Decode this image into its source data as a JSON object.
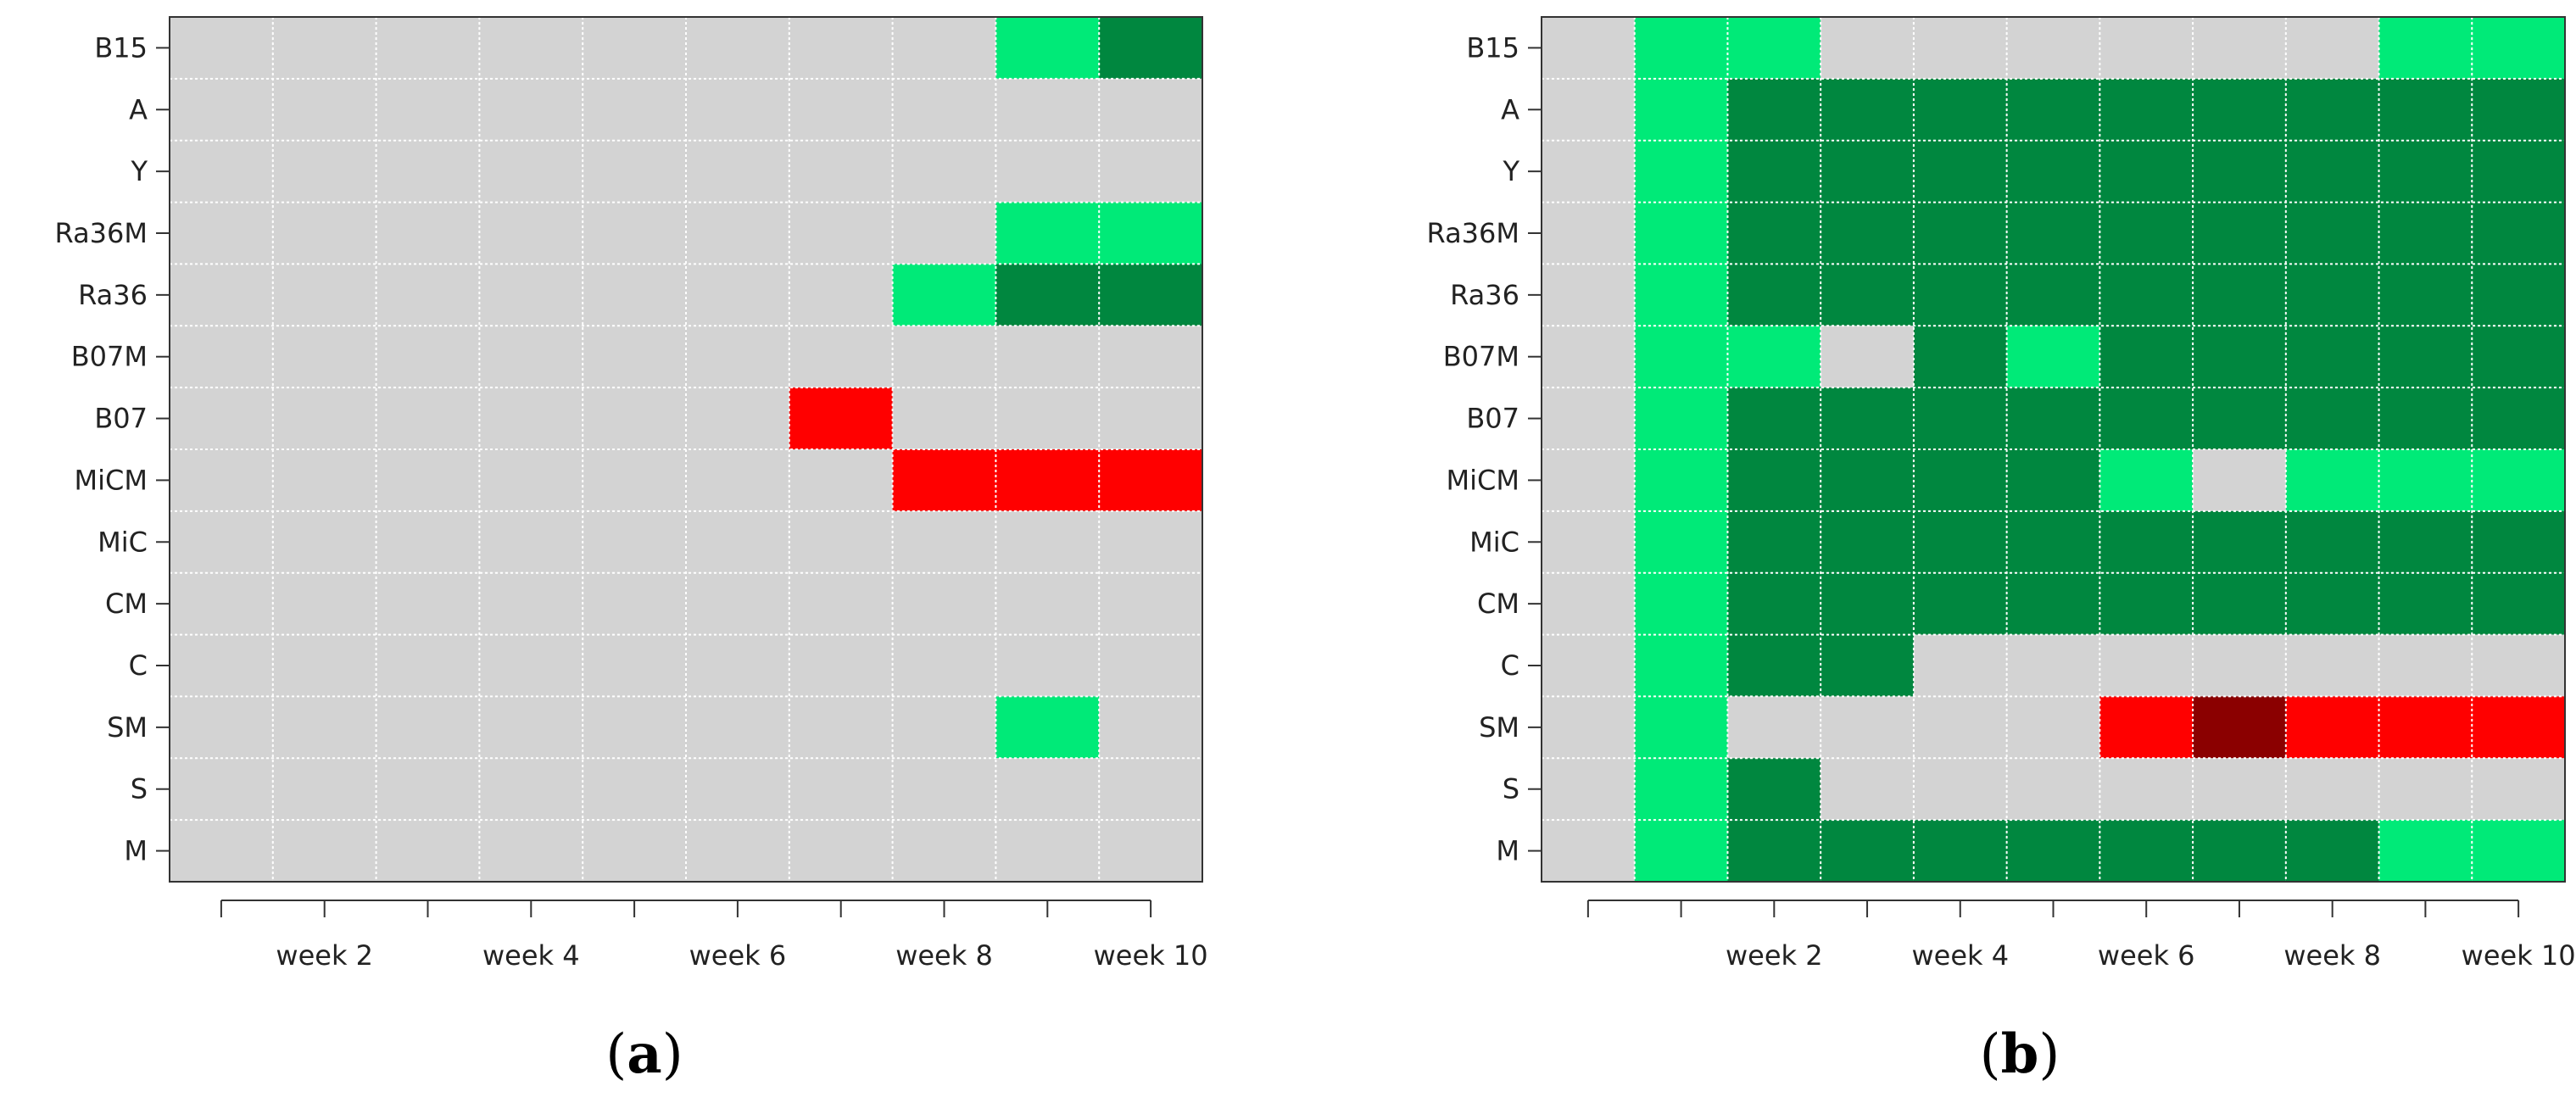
{
  "colors": {
    "none": "#d3d3d3",
    "light_green": "#00ea78",
    "dark_green": "#00873f",
    "red": "#ff0000",
    "dark_red": "#8b0000",
    "grid": "#ffffff",
    "axis": "#333333"
  },
  "chart_data": [
    {
      "type": "heatmap",
      "panel": "a",
      "caption": {
        "open": "(",
        "letter": "a",
        "close": ")"
      },
      "weeks": [
        1,
        2,
        3,
        4,
        5,
        6,
        7,
        8,
        9,
        10
      ],
      "xlim": [
        0.5,
        10.5
      ],
      "x_tick_labels": [
        {
          "week": 2,
          "label": "week 2"
        },
        {
          "week": 4,
          "label": "week 4"
        },
        {
          "week": 6,
          "label": "week 6"
        },
        {
          "week": 8,
          "label": "week 8"
        },
        {
          "week": 10,
          "label": "week 10"
        }
      ],
      "rows": [
        "B15",
        "A",
        "Y",
        "Ra36M",
        "Ra36",
        "B07M",
        "B07",
        "MiCM",
        "MiC",
        "CM",
        "C",
        "SM",
        "S",
        "M"
      ],
      "values": [
        [
          "none",
          "none",
          "none",
          "none",
          "none",
          "none",
          "none",
          "none",
          "light_green",
          "dark_green"
        ],
        [
          "none",
          "none",
          "none",
          "none",
          "none",
          "none",
          "none",
          "none",
          "none",
          "none"
        ],
        [
          "none",
          "none",
          "none",
          "none",
          "none",
          "none",
          "none",
          "none",
          "none",
          "none"
        ],
        [
          "none",
          "none",
          "none",
          "none",
          "none",
          "none",
          "none",
          "none",
          "light_green",
          "light_green"
        ],
        [
          "none",
          "none",
          "none",
          "none",
          "none",
          "none",
          "none",
          "light_green",
          "dark_green",
          "dark_green"
        ],
        [
          "none",
          "none",
          "none",
          "none",
          "none",
          "none",
          "none",
          "none",
          "none",
          "none"
        ],
        [
          "none",
          "none",
          "none",
          "none",
          "none",
          "none",
          "red",
          "none",
          "none",
          "none"
        ],
        [
          "none",
          "none",
          "none",
          "none",
          "none",
          "none",
          "none",
          "red",
          "red",
          "red"
        ],
        [
          "none",
          "none",
          "none",
          "none",
          "none",
          "none",
          "none",
          "none",
          "none",
          "none"
        ],
        [
          "none",
          "none",
          "none",
          "none",
          "none",
          "none",
          "none",
          "none",
          "none",
          "none"
        ],
        [
          "none",
          "none",
          "none",
          "none",
          "none",
          "none",
          "none",
          "none",
          "none",
          "none"
        ],
        [
          "none",
          "none",
          "none",
          "none",
          "none",
          "none",
          "none",
          "none",
          "light_green",
          "none"
        ],
        [
          "none",
          "none",
          "none",
          "none",
          "none",
          "none",
          "none",
          "none",
          "none",
          "none"
        ],
        [
          "none",
          "none",
          "none",
          "none",
          "none",
          "none",
          "none",
          "none",
          "none",
          "none"
        ]
      ]
    },
    {
      "type": "heatmap",
      "panel": "b",
      "caption": {
        "open": "(",
        "letter": "b",
        "close": ")"
      },
      "weeks": [
        0,
        1,
        2,
        3,
        4,
        5,
        6,
        7,
        8,
        9,
        10
      ],
      "xlim": [
        -0.5,
        10.5
      ],
      "x_tick_labels": [
        {
          "week": 2,
          "label": "week 2"
        },
        {
          "week": 4,
          "label": "week 4"
        },
        {
          "week": 6,
          "label": "week 6"
        },
        {
          "week": 8,
          "label": "week 8"
        },
        {
          "week": 10,
          "label": "week 10"
        }
      ],
      "rows": [
        "B15",
        "A",
        "Y",
        "Ra36M",
        "Ra36",
        "B07M",
        "B07",
        "MiCM",
        "MiC",
        "CM",
        "C",
        "SM",
        "S",
        "M"
      ],
      "values": [
        [
          "none",
          "light_green",
          "light_green",
          "none",
          "none",
          "none",
          "none",
          "none",
          "none",
          "light_green",
          "light_green"
        ],
        [
          "none",
          "light_green",
          "dark_green",
          "dark_green",
          "dark_green",
          "dark_green",
          "dark_green",
          "dark_green",
          "dark_green",
          "dark_green",
          "dark_green"
        ],
        [
          "none",
          "light_green",
          "dark_green",
          "dark_green",
          "dark_green",
          "dark_green",
          "dark_green",
          "dark_green",
          "dark_green",
          "dark_green",
          "dark_green"
        ],
        [
          "none",
          "light_green",
          "dark_green",
          "dark_green",
          "dark_green",
          "dark_green",
          "dark_green",
          "dark_green",
          "dark_green",
          "dark_green",
          "dark_green"
        ],
        [
          "none",
          "light_green",
          "dark_green",
          "dark_green",
          "dark_green",
          "dark_green",
          "dark_green",
          "dark_green",
          "dark_green",
          "dark_green",
          "dark_green"
        ],
        [
          "none",
          "light_green",
          "light_green",
          "none",
          "dark_green",
          "light_green",
          "dark_green",
          "dark_green",
          "dark_green",
          "dark_green",
          "dark_green"
        ],
        [
          "none",
          "light_green",
          "dark_green",
          "dark_green",
          "dark_green",
          "dark_green",
          "dark_green",
          "dark_green",
          "dark_green",
          "dark_green",
          "dark_green"
        ],
        [
          "none",
          "light_green",
          "dark_green",
          "dark_green",
          "dark_green",
          "dark_green",
          "light_green",
          "none",
          "light_green",
          "light_green",
          "light_green"
        ],
        [
          "none",
          "light_green",
          "dark_green",
          "dark_green",
          "dark_green",
          "dark_green",
          "dark_green",
          "dark_green",
          "dark_green",
          "dark_green",
          "dark_green"
        ],
        [
          "none",
          "light_green",
          "dark_green",
          "dark_green",
          "dark_green",
          "dark_green",
          "dark_green",
          "dark_green",
          "dark_green",
          "dark_green",
          "dark_green"
        ],
        [
          "none",
          "light_green",
          "dark_green",
          "dark_green",
          "none",
          "none",
          "none",
          "none",
          "none",
          "none",
          "none"
        ],
        [
          "none",
          "light_green",
          "none",
          "none",
          "none",
          "none",
          "red",
          "dark_red",
          "red",
          "red",
          "red"
        ],
        [
          "none",
          "light_green",
          "dark_green",
          "none",
          "none",
          "none",
          "none",
          "none",
          "none",
          "none",
          "none"
        ],
        [
          "none",
          "light_green",
          "dark_green",
          "dark_green",
          "dark_green",
          "dark_green",
          "dark_green",
          "dark_green",
          "dark_green",
          "light_green",
          "light_green"
        ]
      ]
    }
  ]
}
